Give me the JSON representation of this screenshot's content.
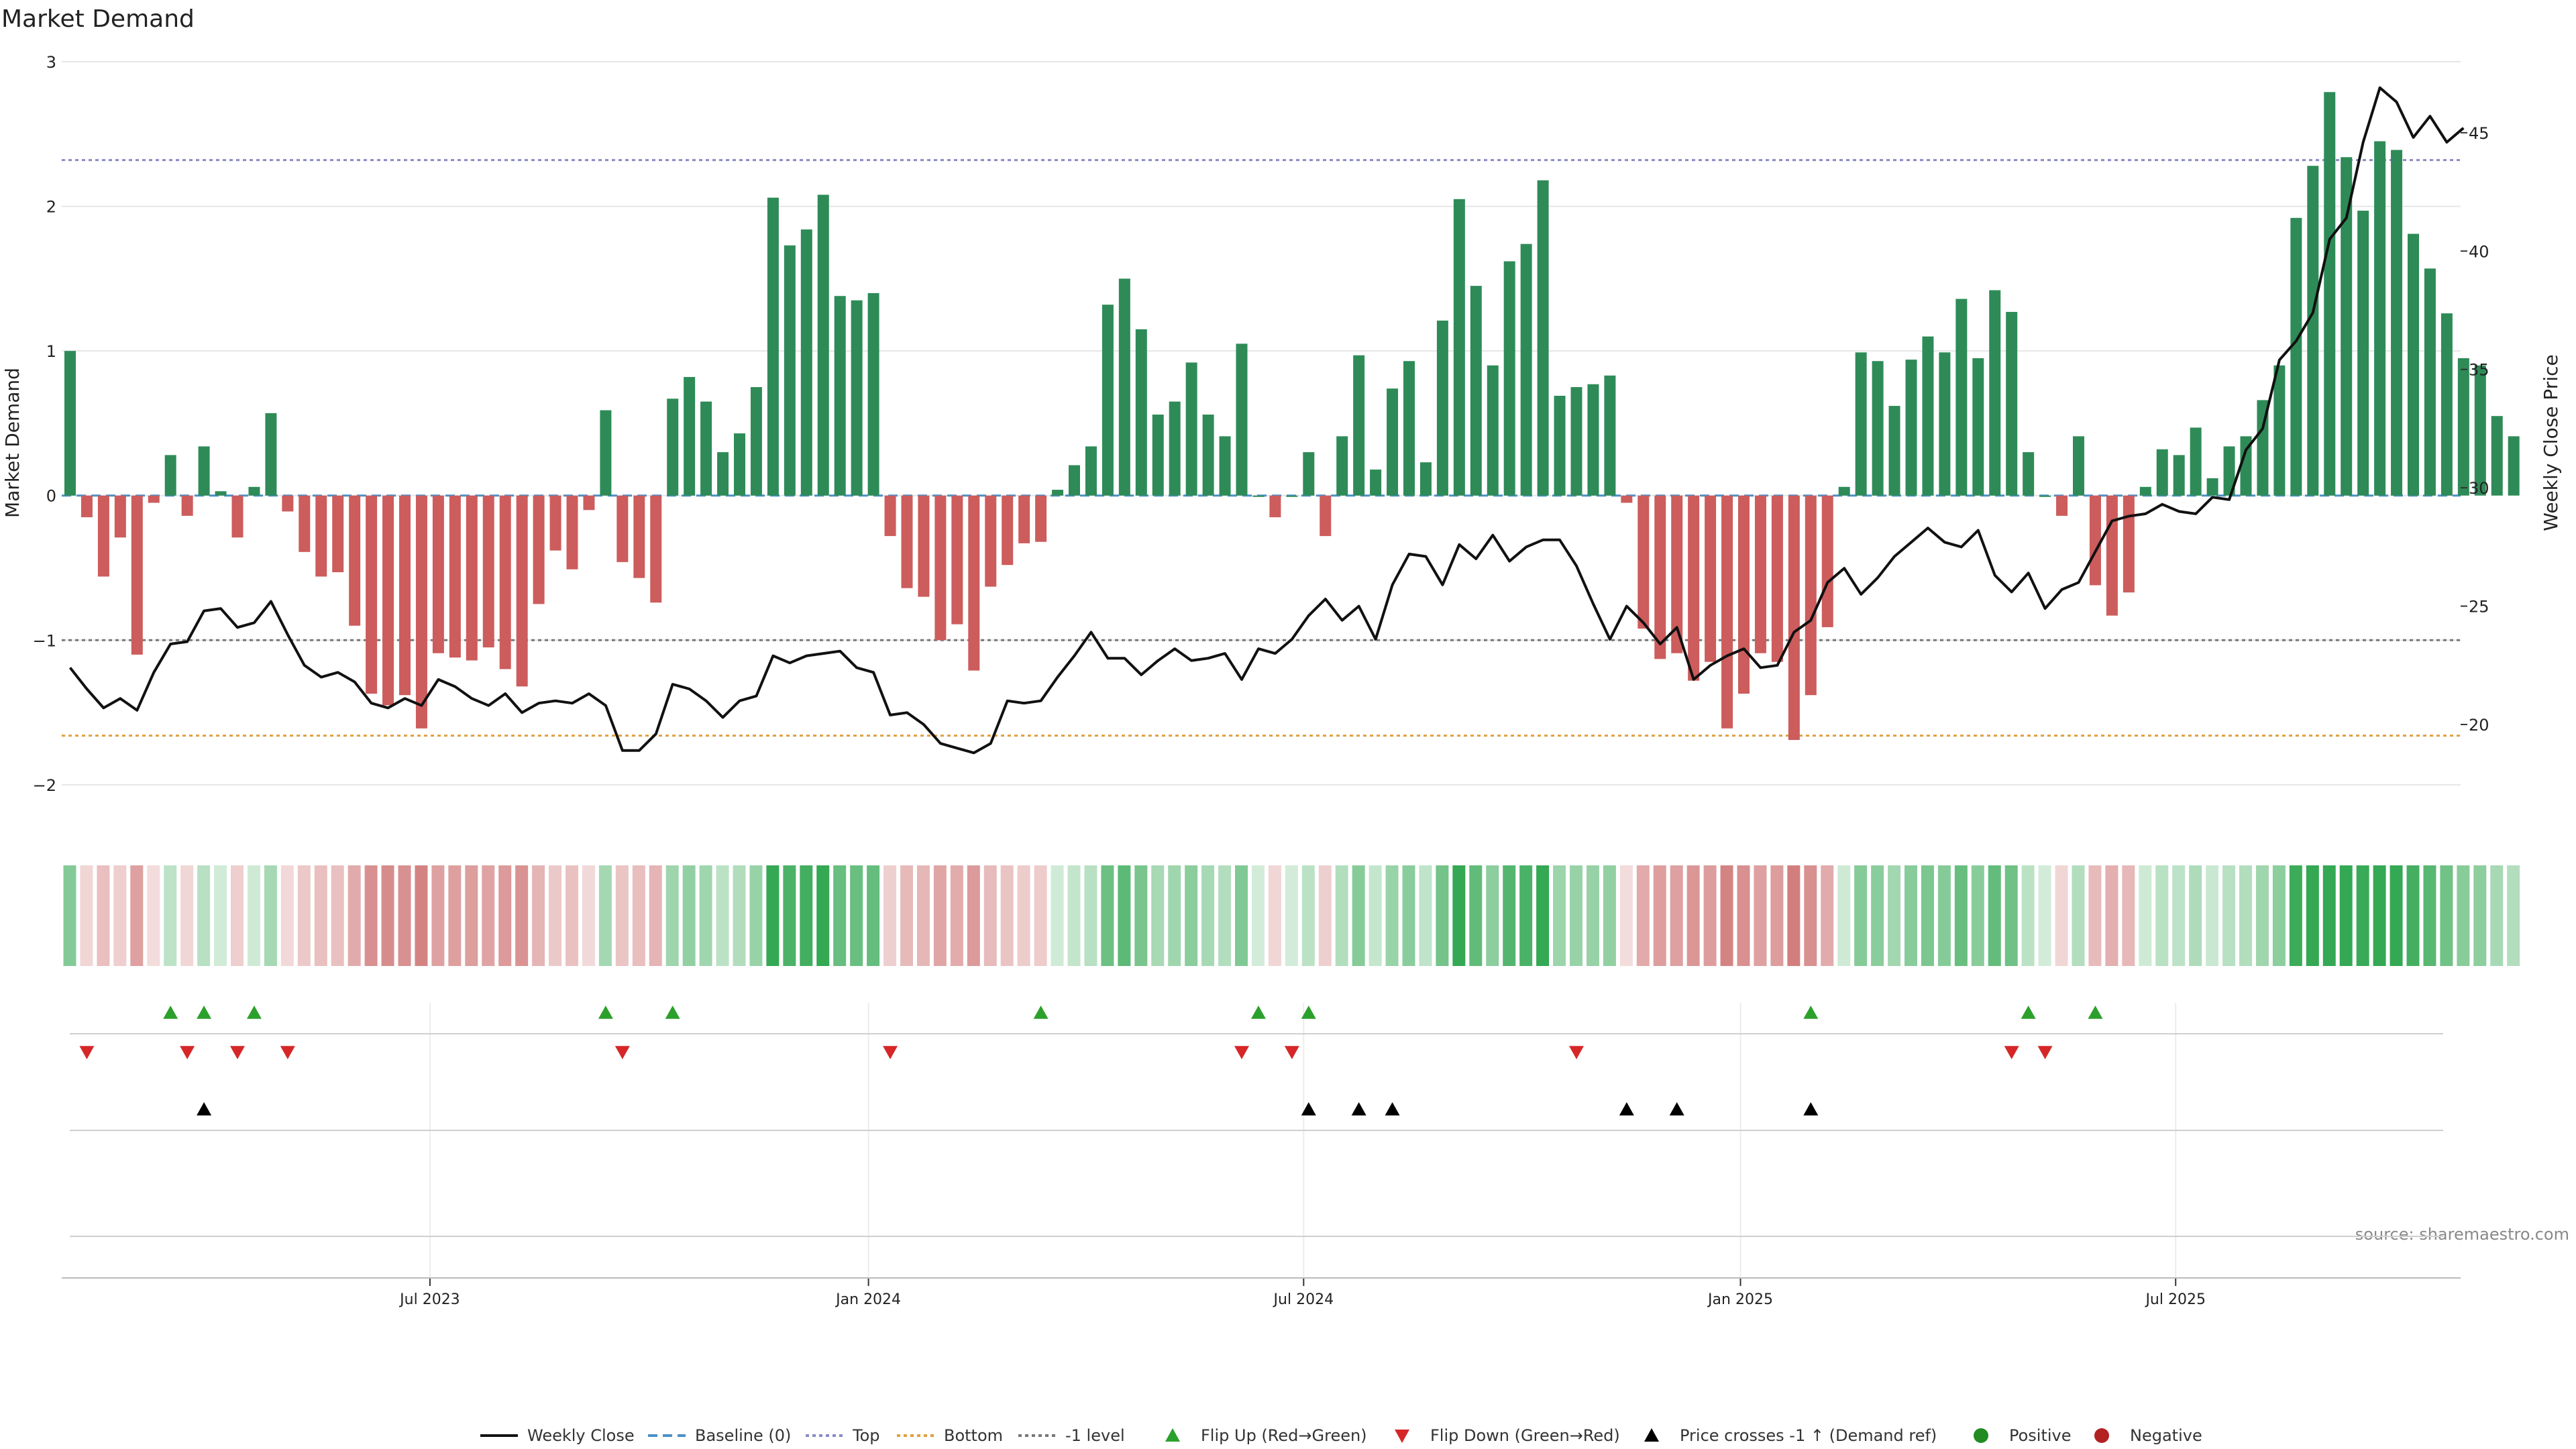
{
  "chart_data": {
    "type": "bar",
    "title": "Market Demand",
    "ylabel_left": "Market Demand",
    "ylabel_right": "Weekly Close Price",
    "source": "source: sharemaestro.com",
    "y_left": {
      "lim": [
        -2.2,
        3.0
      ],
      "ticks": [
        3,
        2,
        1,
        0,
        -1,
        -2
      ],
      "tick_labels": [
        "3",
        "2",
        "1",
        "0",
        "−1",
        "−2"
      ]
    },
    "y_right": {
      "lim": [
        16.23,
        48.0
      ],
      "ticks": [
        45,
        40,
        35,
        30,
        25,
        20
      ],
      "tick_labels": [
        "45",
        "40",
        "35",
        "30",
        "25",
        "20"
      ]
    },
    "x_ticks": [
      {
        "index": 21.5,
        "label": "Jul 2023"
      },
      {
        "index": 47.7,
        "label": "Jan 2024"
      },
      {
        "index": 73.7,
        "label": "Jul 2024"
      },
      {
        "index": 99.8,
        "label": "Jan 2025"
      },
      {
        "index": 125.8,
        "label": "Jul 2025"
      }
    ],
    "reference_lines": [
      {
        "name": "Top",
        "value": 2.32,
        "color": "#8a8ac8",
        "style": "dotted"
      },
      {
        "name": "Baseline (0)",
        "value": 0,
        "color": "#4a90c8",
        "style": "dashed"
      },
      {
        "name": "-1 level",
        "value": -1,
        "color": "#777777",
        "style": "dotted"
      },
      {
        "name": "Bottom",
        "value": -1.66,
        "color": "#e0a040",
        "style": "dotted"
      }
    ],
    "series": [
      {
        "name": "Market Demand",
        "type": "bar",
        "values": [
          1.0,
          -0.15,
          -0.56,
          -0.29,
          -1.1,
          -0.05,
          0.28,
          -0.14,
          0.34,
          0.03,
          -0.29,
          0.06,
          0.57,
          -0.11,
          -0.39,
          -0.56,
          -0.53,
          -0.9,
          -1.37,
          -1.45,
          -1.38,
          -1.61,
          -1.09,
          -1.12,
          -1.14,
          -1.05,
          -1.2,
          -1.32,
          -0.75,
          -0.38,
          -0.51,
          -0.1,
          0.59,
          -0.46,
          -0.57,
          -0.74,
          0.67,
          0.82,
          0.65,
          0.3,
          0.43,
          0.75,
          2.06,
          1.73,
          1.84,
          2.08,
          1.38,
          1.35,
          1.4,
          -0.28,
          -0.64,
          -0.7,
          -1.0,
          -0.89,
          -1.21,
          -0.63,
          -0.48,
          -0.33,
          -0.32,
          0.04,
          0.21,
          0.34,
          1.32,
          1.5,
          1.15,
          0.56,
          0.65,
          0.92,
          0.56,
          0.41,
          1.05,
          0.0,
          -0.15,
          0.0,
          0.3,
          -0.28,
          0.41,
          0.97,
          0.18,
          0.74,
          0.93,
          0.23,
          1.21,
          2.05,
          1.45,
          0.9,
          1.62,
          1.74,
          2.18,
          0.69,
          0.75,
          0.77,
          0.83,
          -0.05,
          -0.92,
          -1.13,
          -1.09,
          -1.28,
          -1.15,
          -1.61,
          -1.37,
          -1.09,
          -1.15,
          -1.69,
          -1.38,
          -0.91,
          0.06,
          0.99,
          0.93,
          0.62,
          0.94,
          1.1,
          0.99,
          1.36,
          0.95,
          1.42,
          1.27,
          0.3,
          0.0,
          -0.14,
          0.41,
          -0.62,
          -0.83,
          -0.67,
          0.06,
          0.32,
          0.28,
          0.47,
          0.12,
          0.34,
          0.41,
          0.66,
          0.9,
          1.92,
          2.28,
          2.79,
          2.34,
          1.97,
          2.45,
          2.39,
          1.81,
          1.57,
          1.26,
          0.95,
          0.9,
          0.55,
          0.41
        ]
      },
      {
        "name": "Weekly Close",
        "type": "line",
        "values": [
          22.4,
          21.5,
          20.7,
          21.1,
          20.6,
          22.2,
          23.4,
          23.5,
          24.8,
          24.9,
          24.1,
          24.3,
          25.2,
          23.8,
          22.5,
          22.0,
          22.2,
          21.8,
          20.9,
          20.7,
          21.1,
          20.8,
          21.9,
          21.6,
          21.1,
          20.8,
          21.3,
          20.5,
          20.9,
          21.0,
          20.9,
          21.3,
          20.8,
          18.9,
          18.9,
          19.6,
          21.7,
          21.5,
          21.0,
          20.3,
          21.0,
          21.2,
          22.9,
          22.6,
          22.9,
          23.0,
          23.1,
          22.4,
          22.2,
          20.4,
          20.5,
          20.0,
          19.2,
          19.0,
          18.8,
          19.2,
          21.0,
          20.9,
          21.0,
          22.0,
          22.9,
          23.9,
          22.8,
          22.8,
          22.1,
          22.7,
          23.2,
          22.7,
          22.8,
          23.0,
          21.9,
          23.2,
          23.0,
          23.6,
          24.6,
          25.3,
          24.4,
          25.0,
          23.6,
          25.9,
          27.2,
          27.1,
          25.9,
          27.6,
          27.0,
          28.0,
          26.9,
          27.5,
          27.8,
          27.8,
          26.7,
          25.1,
          23.6,
          25.0,
          24.3,
          23.4,
          24.1,
          21.9,
          22.5,
          22.9,
          23.2,
          22.4,
          22.5,
          23.9,
          24.4,
          26.0,
          26.6,
          25.5,
          26.2,
          27.1,
          27.7,
          28.3,
          27.7,
          27.5,
          28.2,
          26.3,
          25.6,
          26.4,
          24.9,
          25.7,
          26.0,
          27.3,
          28.6,
          28.8,
          28.9,
          29.3,
          29.0,
          28.9,
          29.6,
          29.5,
          31.6,
          32.5,
          35.4,
          36.2,
          37.4,
          40.5,
          41.4,
          44.6,
          46.9,
          46.3,
          44.8,
          45.7,
          44.6,
          45.2
        ]
      }
    ],
    "flip_up_indices": [
      6,
      8,
      11,
      32,
      36,
      58,
      71,
      74,
      104,
      117,
      121
    ],
    "flip_down_indices": [
      1,
      7,
      10,
      13,
      33,
      49,
      70,
      73,
      90,
      116,
      118
    ],
    "price_cross_indices": [
      8,
      74,
      77,
      79,
      93,
      96,
      104
    ],
    "legend": [
      "Weekly Close",
      "Baseline (0)",
      "Top",
      "Bottom",
      "-1 level",
      "Flip Up (Red→Green)",
      "Flip Down (Green→Red)",
      "Price crosses -1 ↑ (Demand ref)",
      "Positive",
      "Negative"
    ],
    "colors": {
      "positive": "#2e8b57",
      "negative": "#cd5c5c",
      "line": "#111111",
      "flip_up": "#2ca02c",
      "flip_down": "#d62728",
      "cross": "#000000",
      "positive_dot": "#228b22",
      "negative_dot": "#b22222",
      "grid": "#e6e6e6"
    }
  }
}
